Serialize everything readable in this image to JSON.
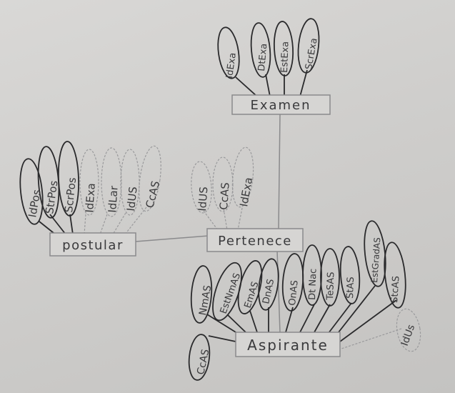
{
  "entities": {
    "examen": "Examen",
    "postular": "postular",
    "pertenece": "Pertenece",
    "aspirante": "Aspirante"
  },
  "attributes": {
    "examen": [
      "IdExa",
      "DtExa",
      "EstExa",
      "ScrExa"
    ],
    "postular": [
      "IdPos",
      "StrPos",
      "ScrPos",
      "IdExa",
      "IdLar",
      "IdUS",
      "CcAS"
    ],
    "pertenece": [
      "IdUS",
      "CcAS",
      "IdExa"
    ],
    "aspirante": [
      "CcAS",
      "NmAS",
      "EstNmAS",
      "EmAS",
      "DnAS",
      "OnAS",
      "Dt Nac",
      "TeSAS",
      "StAS",
      "EstGradAS",
      "StcAS",
      "IdUs"
    ]
  }
}
